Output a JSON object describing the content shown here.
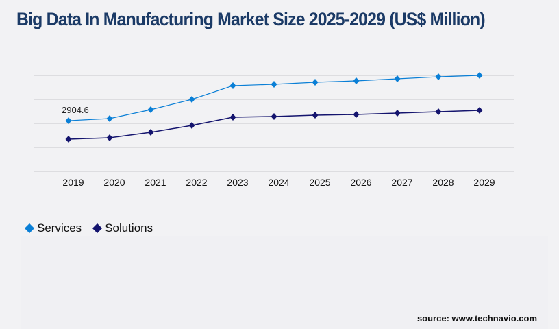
{
  "chart_data": {
    "type": "line",
    "title": "Big Data In Manufacturing Market Size 2025-2029 (US$ Million)",
    "xlabel": "",
    "ylabel": "",
    "categories": [
      "2019",
      "2020",
      "2021",
      "2022",
      "2023",
      "2024",
      "2025",
      "2026",
      "2027",
      "2028",
      "2029"
    ],
    "series": [
      {
        "name": "Services",
        "color": "#0a7fd6",
        "values": [
          2904.6,
          3025,
          3536,
          4125,
          4911,
          4990,
          5107,
          5186,
          5304,
          5422,
          5500
        ]
      },
      {
        "name": "Solutions",
        "color": "#14146e",
        "values": [
          1847,
          1925,
          2240,
          2632,
          3104,
          3143,
          3222,
          3261,
          3340,
          3418,
          3497
        ]
      }
    ],
    "data_labels": [
      {
        "series": "Services",
        "category": "2019",
        "text": "2904.6"
      }
    ],
    "ylim": [
      0,
      5500
    ],
    "y_tick_labels_shown": false,
    "grid": true,
    "legend_position": "bottom-left"
  },
  "source": "source: www.technavio.com"
}
